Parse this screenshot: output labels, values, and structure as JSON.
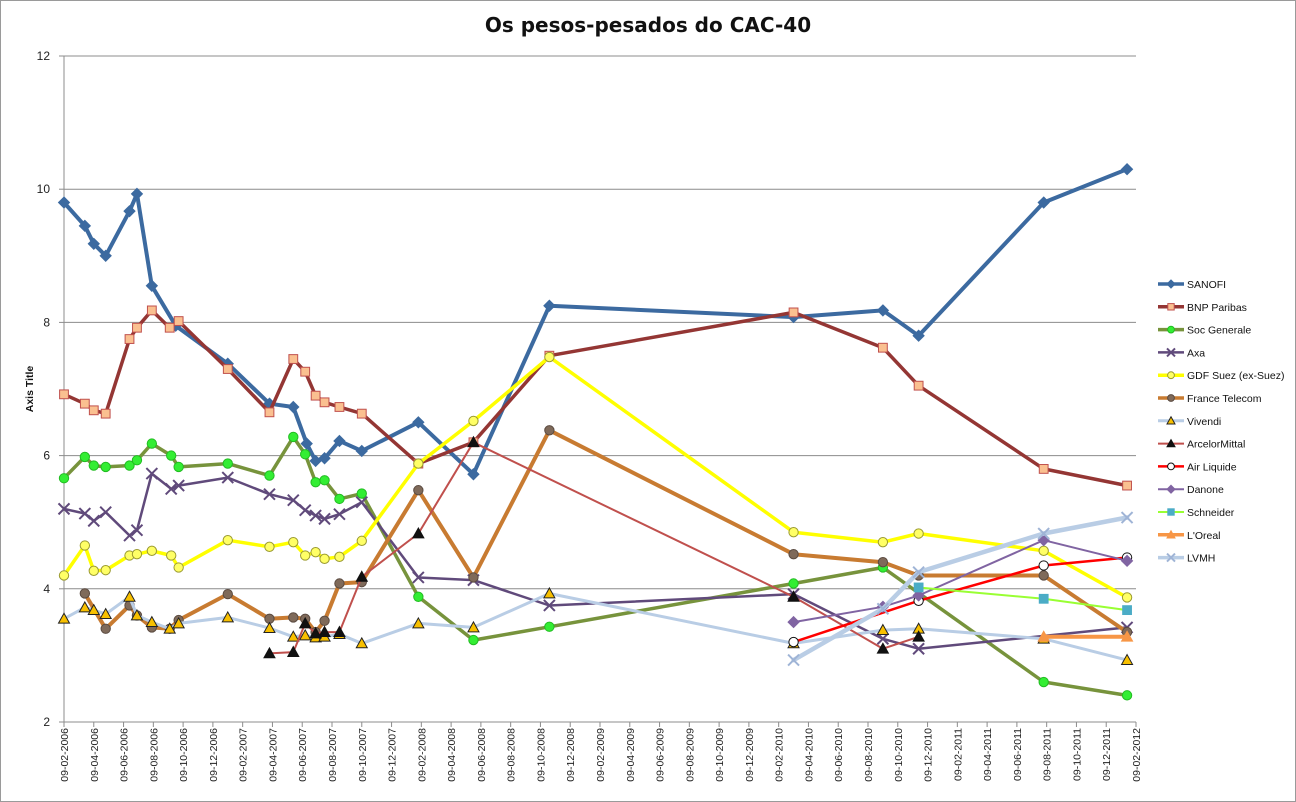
{
  "chart_data": {
    "type": "line",
    "title": "Os pesos-pesados do CAC-40",
    "ylabel": "Axis Title",
    "ylim": [
      2,
      12
    ],
    "yticks": [
      "2",
      "4",
      "6",
      "8",
      "10",
      "12"
    ],
    "grid": "horizontal",
    "legend_position": "right",
    "x_tick_labels": [
      "09-02-2006",
      "09-04-2006",
      "09-06-2006",
      "09-08-2006",
      "09-10-2006",
      "09-12-2006",
      "09-02-2007",
      "09-04-2007",
      "09-06-2007",
      "09-08-2007",
      "09-10-2007",
      "09-12-2007",
      "09-02-2008",
      "09-04-2008",
      "09-06-2008",
      "09-08-2008",
      "09-10-2008",
      "09-12-2008",
      "09-02-2009",
      "09-04-2009",
      "09-06-2009",
      "09-08-2009",
      "09-10-2009",
      "09-12-2009",
      "09-02-2010",
      "09-04-2010",
      "09-06-2010",
      "09-08-2010",
      "09-10-2010",
      "09-12-2010",
      "09-02-2011",
      "09-04-2011",
      "09-06-2011",
      "09-08-2011",
      "09-10-2011",
      "09-12-2011",
      "09-02-2012"
    ],
    "series": [
      {
        "name": "SANOFI",
        "color": "#3c6aa0",
        "width": 4,
        "marker": "diamond",
        "markerFill": "#3c6aa0",
        "markerStroke": "#3c6aa0",
        "points": [
          [
            0,
            9.8
          ],
          [
            0.7,
            9.45
          ],
          [
            1,
            9.18
          ],
          [
            1.4,
            9.0
          ],
          [
            2.2,
            9.67
          ],
          [
            2.45,
            9.93
          ],
          [
            2.95,
            8.55
          ],
          [
            3.75,
            7.95
          ],
          [
            5.5,
            7.38
          ],
          [
            6.9,
            6.78
          ],
          [
            7.7,
            6.73
          ],
          [
            8.15,
            6.18
          ],
          [
            8.45,
            5.92
          ],
          [
            8.75,
            5.96
          ],
          [
            9.25,
            6.22
          ],
          [
            10,
            6.07
          ],
          [
            11.9,
            6.5
          ],
          [
            13.75,
            5.72
          ],
          [
            16.3,
            8.25
          ],
          [
            24.5,
            8.08
          ],
          [
            27.5,
            8.18
          ],
          [
            28.7,
            7.8
          ],
          [
            32.9,
            9.8
          ],
          [
            35.7,
            10.3
          ]
        ]
      },
      {
        "name": "BNP Paribas",
        "color": "#943634",
        "width": 3.5,
        "marker": "square",
        "markerFill": "#fac090",
        "markerStroke": "#c0504d",
        "points": [
          [
            0,
            6.92
          ],
          [
            0.7,
            6.78
          ],
          [
            1,
            6.68
          ],
          [
            1.4,
            6.63
          ],
          [
            2.2,
            7.75
          ],
          [
            2.45,
            7.92
          ],
          [
            2.95,
            8.18
          ],
          [
            3.55,
            7.92
          ],
          [
            3.85,
            8.02
          ],
          [
            5.5,
            7.3
          ],
          [
            6.9,
            6.65
          ],
          [
            7.7,
            7.45
          ],
          [
            8.1,
            7.26
          ],
          [
            8.45,
            6.9
          ],
          [
            8.75,
            6.8
          ],
          [
            9.25,
            6.73
          ],
          [
            10,
            6.63
          ],
          [
            11.9,
            5.88
          ],
          [
            13.75,
            6.2
          ],
          [
            16.3,
            7.5
          ],
          [
            24.5,
            8.15
          ],
          [
            27.5,
            7.62
          ],
          [
            28.7,
            7.05
          ],
          [
            32.9,
            5.8
          ],
          [
            35.7,
            5.55
          ]
        ]
      },
      {
        "name": "Soc Generale",
        "color": "#77933c",
        "width": 3.5,
        "marker": "circle",
        "markerFill": "#33ee33",
        "markerStroke": "#22bb22",
        "points": [
          [
            0,
            5.66
          ],
          [
            0.7,
            5.98
          ],
          [
            1,
            5.85
          ],
          [
            1.4,
            5.83
          ],
          [
            2.2,
            5.85
          ],
          [
            2.45,
            5.93
          ],
          [
            2.95,
            6.18
          ],
          [
            3.6,
            6.0
          ],
          [
            3.85,
            5.83
          ],
          [
            5.5,
            5.88
          ],
          [
            6.9,
            5.7
          ],
          [
            7.7,
            6.28
          ],
          [
            8.1,
            6.02
          ],
          [
            8.45,
            5.6
          ],
          [
            8.75,
            5.63
          ],
          [
            9.25,
            5.35
          ],
          [
            10,
            5.43
          ],
          [
            11.9,
            3.88
          ],
          [
            13.75,
            3.23
          ],
          [
            16.3,
            3.43
          ],
          [
            24.5,
            4.08
          ],
          [
            27.5,
            4.32
          ],
          [
            32.9,
            2.6
          ],
          [
            35.7,
            2.4
          ]
        ]
      },
      {
        "name": "Axa",
        "color": "#604a7b",
        "width": 2.5,
        "marker": "x",
        "markerFill": "#604a7b",
        "markerStroke": "#604a7b",
        "points": [
          [
            0,
            5.2
          ],
          [
            0.7,
            5.13
          ],
          [
            1,
            5.02
          ],
          [
            1.4,
            5.15
          ],
          [
            2.2,
            4.8
          ],
          [
            2.45,
            4.88
          ],
          [
            2.95,
            5.73
          ],
          [
            3.6,
            5.5
          ],
          [
            3.85,
            5.55
          ],
          [
            5.5,
            5.67
          ],
          [
            6.9,
            5.42
          ],
          [
            7.7,
            5.33
          ],
          [
            8.1,
            5.18
          ],
          [
            8.45,
            5.1
          ],
          [
            8.75,
            5.05
          ],
          [
            9.25,
            5.12
          ],
          [
            10,
            5.3
          ],
          [
            11.9,
            4.17
          ],
          [
            13.75,
            4.13
          ],
          [
            16.3,
            3.75
          ],
          [
            24.5,
            3.92
          ],
          [
            27.5,
            3.25
          ],
          [
            28.7,
            3.1
          ],
          [
            35.7,
            3.42
          ]
        ]
      },
      {
        "name": "GDF Suez (ex-Suez)",
        "color": "#ffff00",
        "width": 3.5,
        "marker": "circle",
        "markerFill": "#ffff66",
        "markerStroke": "#9a9a30",
        "points": [
          [
            0,
            4.2
          ],
          [
            0.7,
            4.65
          ],
          [
            1,
            4.27
          ],
          [
            1.4,
            4.28
          ],
          [
            2.2,
            4.5
          ],
          [
            2.45,
            4.52
          ],
          [
            2.95,
            4.57
          ],
          [
            3.6,
            4.5
          ],
          [
            3.85,
            4.32
          ],
          [
            5.5,
            4.73
          ],
          [
            6.9,
            4.63
          ],
          [
            7.7,
            4.7
          ],
          [
            8.1,
            4.5
          ],
          [
            8.45,
            4.55
          ],
          [
            8.75,
            4.45
          ],
          [
            9.25,
            4.48
          ],
          [
            10,
            4.72
          ],
          [
            11.9,
            5.88
          ],
          [
            13.75,
            6.52
          ],
          [
            16.3,
            7.48
          ],
          [
            24.5,
            4.85
          ],
          [
            27.5,
            4.7
          ],
          [
            28.7,
            4.83
          ],
          [
            32.9,
            4.57
          ],
          [
            35.7,
            3.87
          ]
        ]
      },
      {
        "name": "France Telecom",
        "color": "#c87b31",
        "width": 4,
        "marker": "circle",
        "markerFill": "#7f6a5a",
        "markerStroke": "#5a4a40",
        "points": [
          [
            0.7,
            3.93
          ],
          [
            1.4,
            3.4
          ],
          [
            2.2,
            3.75
          ],
          [
            2.45,
            3.6
          ],
          [
            2.95,
            3.42
          ],
          [
            3.55,
            3.4
          ],
          [
            3.85,
            3.53
          ],
          [
            5.5,
            3.92
          ],
          [
            6.9,
            3.55
          ],
          [
            7.7,
            3.57
          ],
          [
            8.1,
            3.55
          ],
          [
            8.45,
            3.35
          ],
          [
            8.75,
            3.52
          ],
          [
            9.25,
            4.08
          ],
          [
            10,
            4.1
          ],
          [
            11.9,
            5.48
          ],
          [
            13.75,
            4.17
          ],
          [
            16.3,
            6.38
          ],
          [
            24.5,
            4.52
          ],
          [
            27.5,
            4.4
          ],
          [
            28.7,
            4.2
          ],
          [
            32.9,
            4.2
          ],
          [
            35.7,
            3.35
          ]
        ]
      },
      {
        "name": "Vivendi",
        "color": "#b9cde5",
        "width": 3,
        "marker": "triangle",
        "markerFill": "#f8c000",
        "markerStroke": "#222222",
        "points": [
          [
            0,
            3.55
          ],
          [
            0.7,
            3.72
          ],
          [
            1,
            3.68
          ],
          [
            1.4,
            3.62
          ],
          [
            2.2,
            3.88
          ],
          [
            2.45,
            3.6
          ],
          [
            2.95,
            3.5
          ],
          [
            3.55,
            3.4
          ],
          [
            3.85,
            3.48
          ],
          [
            5.5,
            3.57
          ],
          [
            6.9,
            3.41
          ],
          [
            7.7,
            3.28
          ],
          [
            8.1,
            3.3
          ],
          [
            8.45,
            3.27
          ],
          [
            8.75,
            3.28
          ],
          [
            9.25,
            3.32
          ],
          [
            10,
            3.18
          ],
          [
            11.9,
            3.48
          ],
          [
            13.75,
            3.42
          ],
          [
            16.3,
            3.93
          ],
          [
            24.5,
            3.18
          ],
          [
            27.5,
            3.38
          ],
          [
            28.7,
            3.4
          ],
          [
            32.9,
            3.25
          ],
          [
            35.7,
            2.93
          ]
        ]
      },
      {
        "name": "ArcelorMittal",
        "color": "#c0504d",
        "width": 2,
        "marker": "triangle",
        "markerFill": "#111111",
        "markerStroke": "#111111",
        "points": [
          [
            6.9,
            3.03
          ],
          [
            7.7,
            3.05
          ],
          [
            8.1,
            3.48
          ],
          [
            8.45,
            3.33
          ],
          [
            8.75,
            3.35
          ],
          [
            9.25,
            3.35
          ],
          [
            10,
            4.18
          ],
          [
            11.9,
            4.83
          ],
          [
            13.75,
            6.2
          ],
          [
            24.5,
            3.88
          ],
          [
            27.5,
            3.1
          ],
          [
            28.7,
            3.28
          ]
        ]
      },
      {
        "name": "Air Liquide",
        "color": "#ff0000",
        "width": 2.5,
        "marker": "circle",
        "markerFill": "#ffffff",
        "markerStroke": "#111111",
        "points": [
          [
            24.5,
            3.2
          ],
          [
            28.7,
            3.82
          ],
          [
            32.9,
            4.35
          ],
          [
            35.7,
            4.47
          ]
        ]
      },
      {
        "name": "Danone",
        "color": "#8064a2",
        "width": 2,
        "marker": "diamond",
        "markerFill": "#8064a2",
        "markerStroke": "#8064a2",
        "points": [
          [
            24.5,
            3.5
          ],
          [
            27.5,
            3.73
          ],
          [
            28.7,
            3.9
          ],
          [
            32.9,
            4.73
          ],
          [
            35.7,
            4.42
          ]
        ]
      },
      {
        "name": "Schneider",
        "color": "#99ff33",
        "width": 2,
        "marker": "square",
        "markerFill": "#4bacc6",
        "markerStroke": "#4bacc6",
        "points": [
          [
            28.7,
            4.02
          ],
          [
            32.9,
            3.85
          ],
          [
            35.7,
            3.68
          ]
        ]
      },
      {
        "name": "L'Oreal",
        "color": "#f79646",
        "width": 4,
        "marker": "triangle",
        "markerFill": "#f79646",
        "markerStroke": "#f79646",
        "points": [
          [
            32.9,
            3.28
          ],
          [
            35.7,
            3.28
          ]
        ]
      },
      {
        "name": "LVMH",
        "color": "#b9cde5",
        "width": 4.5,
        "marker": "x",
        "markerFill": "#b9cde5",
        "markerStroke": "#9fb4d6",
        "points": [
          [
            24.5,
            2.93
          ],
          [
            27.5,
            3.7
          ],
          [
            28.7,
            4.25
          ],
          [
            32.9,
            4.83
          ],
          [
            35.7,
            5.07
          ]
        ]
      }
    ]
  }
}
